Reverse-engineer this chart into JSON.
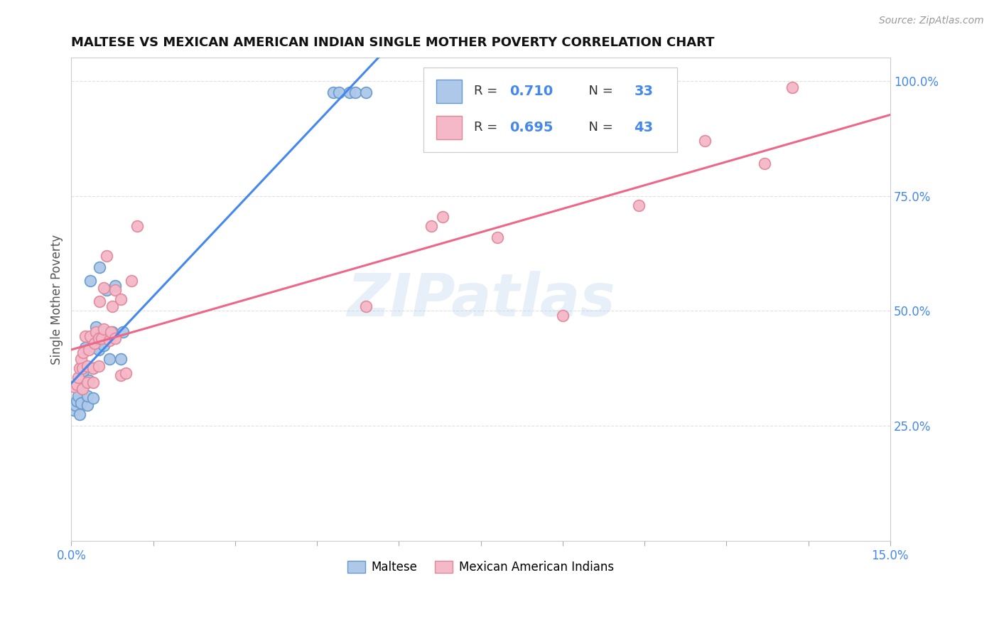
{
  "title": "MALTESE VS MEXICAN AMERICAN INDIAN SINGLE MOTHER POVERTY CORRELATION CHART",
  "source": "Source: ZipAtlas.com",
  "ylabel": "Single Mother Poverty",
  "xlim": [
    0.0,
    0.15
  ],
  "ylim": [
    0.0,
    1.05
  ],
  "xticks": [
    0.0,
    0.015,
    0.03,
    0.045,
    0.06,
    0.075,
    0.09,
    0.105,
    0.12,
    0.135,
    0.15
  ],
  "yticks_right": [
    0.25,
    0.5,
    0.75,
    1.0
  ],
  "ytick_right_labels": [
    "25.0%",
    "50.0%",
    "75.0%",
    "100.0%"
  ],
  "maltese_color": "#adc8e8",
  "maltese_edge": "#6699cc",
  "mexican_color": "#f5b8c8",
  "mexican_edge": "#e0889a",
  "regression_maltese_color": "#4488ee",
  "regression_mexican_color": "#ee6688",
  "R_maltese": 0.71,
  "N_maltese": 33,
  "R_mexican": 0.695,
  "N_mexican": 43,
  "legend_maltese": "Maltese",
  "legend_mexican": "Mexican American Indians",
  "watermark": "ZIPatlas",
  "maltese_x": [
    0.0005,
    0.0008,
    0.001,
    0.0012,
    0.0015,
    0.0018,
    0.002,
    0.0022,
    0.0025,
    0.003,
    0.003,
    0.0032,
    0.0035,
    0.004,
    0.004,
    0.0042,
    0.0045,
    0.005,
    0.005,
    0.0052,
    0.006,
    0.006,
    0.0065,
    0.007,
    0.0075,
    0.008,
    0.009,
    0.0095,
    0.048,
    0.049,
    0.051,
    0.052,
    0.054
  ],
  "maltese_y": [
    0.285,
    0.295,
    0.305,
    0.315,
    0.275,
    0.3,
    0.33,
    0.37,
    0.42,
    0.295,
    0.315,
    0.35,
    0.565,
    0.31,
    0.375,
    0.42,
    0.465,
    0.415,
    0.435,
    0.595,
    0.425,
    0.455,
    0.545,
    0.395,
    0.455,
    0.555,
    0.395,
    0.455,
    0.975,
    0.975,
    0.975,
    0.975,
    0.975
  ],
  "mexican_x": [
    0.0005,
    0.001,
    0.0012,
    0.0015,
    0.0018,
    0.002,
    0.002,
    0.0022,
    0.0025,
    0.003,
    0.003,
    0.0032,
    0.0035,
    0.004,
    0.004,
    0.0042,
    0.0045,
    0.005,
    0.005,
    0.0052,
    0.0055,
    0.006,
    0.006,
    0.0065,
    0.007,
    0.0072,
    0.0075,
    0.008,
    0.008,
    0.009,
    0.009,
    0.01,
    0.011,
    0.012,
    0.054,
    0.066,
    0.068,
    0.078,
    0.09,
    0.104,
    0.116,
    0.127,
    0.132
  ],
  "mexican_y": [
    0.335,
    0.34,
    0.355,
    0.375,
    0.395,
    0.33,
    0.375,
    0.41,
    0.445,
    0.345,
    0.38,
    0.415,
    0.445,
    0.345,
    0.375,
    0.43,
    0.455,
    0.38,
    0.44,
    0.52,
    0.44,
    0.46,
    0.55,
    0.62,
    0.435,
    0.455,
    0.51,
    0.44,
    0.545,
    0.36,
    0.525,
    0.365,
    0.565,
    0.685,
    0.51,
    0.685,
    0.705,
    0.66,
    0.49,
    0.73,
    0.87,
    0.82,
    0.985
  ],
  "background_color": "#ffffff",
  "grid_color": "#e0e0e0"
}
